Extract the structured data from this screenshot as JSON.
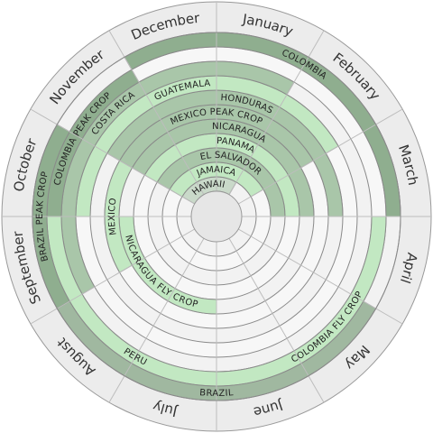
{
  "months": [
    "January",
    "February",
    "March",
    "April",
    "May",
    "June",
    "July",
    "August",
    "September",
    "October",
    "November",
    "December"
  ],
  "arcs": [
    {
      "label": "HAWAII",
      "ring": 0,
      "start": 10,
      "length": 3,
      "color": "#c9d9c9"
    },
    {
      "label": "JAMAICA",
      "ring": 1,
      "start": 10,
      "length": 4,
      "color": "#c2e8c2"
    },
    {
      "label": "EL SALVADOR",
      "ring": 2,
      "start": 10,
      "length": 5,
      "color": "#a9c6a9"
    },
    {
      "label": "PANAMA",
      "ring": 3,
      "start": 10,
      "length": 5,
      "color": "#c2e8c2"
    },
    {
      "label": "NICARAGUA",
      "ring": 4,
      "start": 10,
      "length": 5,
      "color": "#a9c6a9"
    },
    {
      "label": "NICARAGUA FLY CROP",
      "ring": 4,
      "start": 6,
      "length": 3,
      "color": "#c2e8c2"
    },
    {
      "label": "MEXICO PEAK CROP",
      "ring": 5,
      "start": 10,
      "length": 4,
      "color": "#a9c6a9"
    },
    {
      "label": "MEXICO",
      "ring": 5,
      "start": 8,
      "length": 2,
      "color": "#c2e8c2"
    },
    {
      "label": "HONDURAS",
      "ring": 6,
      "start": 10,
      "length": 5,
      "color": "#a9c6a9"
    },
    {
      "label": "GUATEMALA",
      "ring": 7,
      "start": 9,
      "length": 5,
      "color": "#c2e8c2"
    },
    {
      "label": "COSTA RICA",
      "ring": 8,
      "start": 8,
      "length": 5,
      "color": "#a9c6a9"
    },
    {
      "label": "COLOMBIA PEAK CROP",
      "ring": 9,
      "start": 9,
      "length": 2,
      "color": "#8fae8f"
    },
    {
      "label": "PERU",
      "ring": 9,
      "start": 5,
      "length": 4,
      "color": "#c2e8c2"
    },
    {
      "label": "COLOMBIA FLY CROP",
      "ring": 9,
      "start": 3,
      "length": 3,
      "color": "#c2e8c2"
    },
    {
      "label": "COLOMBIA",
      "ring": 10,
      "start": 11,
      "length": 4,
      "color": "#8fae8f"
    },
    {
      "label": "BRAZIL PEAK CROP",
      "ring": 10,
      "start": 8,
      "length": 2,
      "color": "#8fae8f"
    },
    {
      "label": "BRAZIL",
      "ring": 10,
      "start": 4,
      "length": 4,
      "color": "#a0b8a0"
    }
  ]
}
